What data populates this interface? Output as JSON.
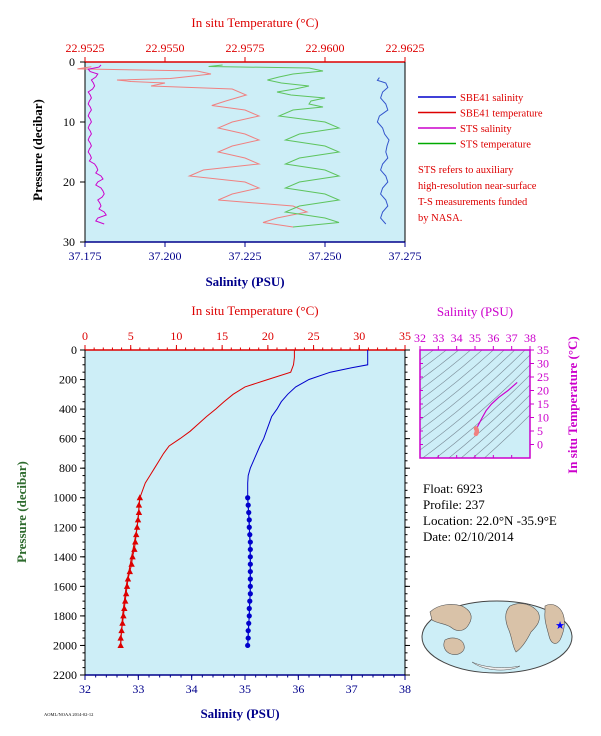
{
  "chart_data": [
    {
      "type": "line",
      "top_axis": {
        "label": "In situ Temperature (°C)",
        "range": [
          22.9525,
          22.9625
        ],
        "ticks": [
          "22.9525",
          "22.9550",
          "22.9575",
          "22.9600",
          "22.9625"
        ],
        "color": "#dd0000"
      },
      "bottom_axis": {
        "label": "Salinity (PSU)",
        "range": [
          37.175,
          37.275
        ],
        "ticks": [
          "37.175",
          "37.200",
          "37.225",
          "37.250",
          "37.275"
        ],
        "color": "#00008b"
      },
      "left_axis": {
        "label": "Pressure (decibar)",
        "range": [
          0,
          30
        ],
        "ticks": [
          "0",
          "10",
          "20",
          "30"
        ],
        "color": "#000000"
      },
      "legend": [
        {
          "name": "SBE41 salinity",
          "color": "#0000cc"
        },
        {
          "name": "SBE41 temperature",
          "color": "#dd0000"
        },
        {
          "name": "STS salinity",
          "color": "#cc00cc"
        },
        {
          "name": "STS temperature",
          "color": "#00aa00"
        }
      ],
      "note": [
        "STS refers to auxiliary",
        "high-resolution near-surface",
        "T-S measurements funded",
        "by NASA."
      ],
      "series": [
        {
          "name": "SBE41 salinity",
          "axis": "salinity",
          "color": "#3355cc",
          "p": [
            2.6,
            3.5,
            5.0,
            7.0,
            9.0,
            11.0,
            13.0,
            15.0,
            17.0,
            19.0,
            21.0,
            23.0,
            25.0,
            27.0
          ],
          "v": [
            37.267,
            37.269,
            37.268,
            37.269,
            37.267,
            37.268,
            37.27,
            37.269,
            37.268,
            37.269,
            37.268,
            37.269,
            37.268,
            37.269
          ]
        },
        {
          "name": "SBE41 temperature",
          "axis": "temperature",
          "color": "#f08080",
          "p": [
            0.8,
            1.5,
            2.5,
            3.0,
            3.5,
            4.5,
            6.5,
            8.0,
            10.0,
            12.0,
            14.0,
            16.0,
            18.0,
            20.0,
            22.0,
            24.0,
            26.0,
            27.5
          ],
          "v": [
            22.9527,
            22.956,
            22.9556,
            22.9535,
            22.955,
            22.9571,
            22.9569,
            22.9575,
            22.9571,
            22.9575,
            22.9571,
            22.9575,
            22.9562,
            22.9575,
            22.9571,
            22.959,
            22.9585,
            22.959
          ]
        },
        {
          "name": "STS salinity",
          "axis": "salinity",
          "color": "#cc00cc",
          "p": [
            0.5,
            1.2,
            2.0,
            3.0,
            4.0,
            5.0,
            6.0,
            7.0,
            8.0,
            9.0,
            10.0,
            11.0,
            12.0,
            13.0,
            14.0,
            15.0,
            16.0,
            17.0,
            18.0,
            19.0,
            20.0,
            21.0,
            22.0,
            23.0,
            24.0,
            25.0,
            26.0,
            27.0
          ],
          "v": [
            37.18,
            37.176,
            37.179,
            37.177,
            37.178,
            37.176,
            37.177,
            37.176,
            37.177,
            37.176,
            37.177,
            37.176,
            37.177,
            37.176,
            37.177,
            37.176,
            37.177,
            37.178,
            37.179,
            37.18,
            37.179,
            37.18,
            37.181,
            37.179,
            37.18,
            37.181,
            37.179,
            37.181
          ]
        },
        {
          "name": "STS temperature",
          "axis": "temperature",
          "color": "#5ec45e",
          "p": [
            0.5,
            1.0,
            2.0,
            3.0,
            4.0,
            5.0,
            6.0,
            7.0,
            8.0,
            10.0,
            12.0,
            14.0,
            16.0,
            18.0,
            20.0,
            22.0,
            24.0,
            26.0,
            27.5
          ],
          "v": [
            22.9568,
            22.9595,
            22.959,
            22.9582,
            22.9595,
            22.9585,
            22.96,
            22.9595,
            22.959,
            22.96,
            22.9592,
            22.96,
            22.9592,
            22.96,
            22.9592,
            22.96,
            22.9592,
            22.96,
            22.959
          ]
        }
      ]
    },
    {
      "type": "line",
      "top_axis": {
        "label": "In situ Temperature (°C)",
        "range": [
          0,
          35
        ],
        "ticks": [
          "0",
          "5",
          "10",
          "15",
          "20",
          "25",
          "30",
          "35"
        ],
        "color": "#dd0000"
      },
      "bottom_axis": {
        "label": "Salinity (PSU)",
        "range": [
          32,
          38
        ],
        "ticks": [
          "32",
          "33",
          "34",
          "35",
          "36",
          "37",
          "38"
        ],
        "color": "#00008b"
      },
      "left_axis": {
        "label": "Pressure (decibar)",
        "range": [
          0,
          2200
        ],
        "ticks": [
          "0",
          "200",
          "400",
          "600",
          "800",
          "1000",
          "1200",
          "1400",
          "1600",
          "1800",
          "2000",
          "2200"
        ],
        "color": "#2e6b2e"
      },
      "series": [
        {
          "name": "temperature",
          "color": "#dd0000",
          "p": [
            0,
            50,
            100,
            150,
            200,
            250,
            300,
            350,
            400,
            450,
            500,
            550,
            600,
            650,
            700,
            750,
            800,
            850,
            900,
            950,
            1000,
            1200,
            1400,
            1600,
            1800,
            2000
          ],
          "v": [
            22.9,
            22.9,
            22.8,
            22.5,
            20.0,
            17.5,
            16.2,
            15.2,
            14.3,
            13.3,
            12.4,
            11.5,
            10.4,
            9.2,
            8.6,
            8.1,
            7.6,
            7.1,
            6.6,
            6.3,
            6.0,
            5.7,
            5.1,
            4.5,
            4.1,
            3.9
          ]
        },
        {
          "name": "temperature bottle",
          "color": "#dd0000",
          "marker": "triangle",
          "p": [
            1000,
            1050,
            1100,
            1150,
            1200,
            1250,
            1300,
            1350,
            1400,
            1450,
            1500,
            1550,
            1600,
            1650,
            1700,
            1750,
            1800,
            1850,
            1900,
            1950,
            2000
          ],
          "v": [
            6.0,
            5.9,
            5.9,
            5.8,
            5.7,
            5.6,
            5.5,
            5.4,
            5.2,
            5.1,
            4.9,
            4.7,
            4.6,
            4.5,
            4.4,
            4.3,
            4.2,
            4.1,
            4.0,
            3.9,
            3.9
          ]
        },
        {
          "name": "salinity",
          "color": "#0000cc",
          "p": [
            0,
            50,
            100,
            120,
            150,
            200,
            250,
            300,
            350,
            400,
            450,
            500,
            550,
            600,
            650,
            700,
            750,
            800,
            850,
            900,
            950,
            1000,
            1200,
            1400,
            1600,
            1800,
            2000
          ],
          "v": [
            37.3,
            37.3,
            37.3,
            37.0,
            36.6,
            36.2,
            35.95,
            35.8,
            35.68,
            35.6,
            35.5,
            35.45,
            35.4,
            35.35,
            35.28,
            35.22,
            35.16,
            35.1,
            35.06,
            35.05,
            35.05,
            35.05,
            35.08,
            35.1,
            35.1,
            35.08,
            35.05
          ]
        },
        {
          "name": "salinity bottle",
          "color": "#0000cc",
          "marker": "circle",
          "p": [
            1000,
            1050,
            1100,
            1150,
            1200,
            1250,
            1300,
            1350,
            1400,
            1450,
            1500,
            1550,
            1600,
            1650,
            1700,
            1750,
            1800,
            1850,
            1900,
            1950,
            2000
          ],
          "v": [
            35.05,
            35.06,
            35.07,
            35.08,
            35.08,
            35.09,
            35.1,
            35.1,
            35.1,
            35.1,
            35.1,
            35.1,
            35.1,
            35.1,
            35.09,
            35.08,
            35.08,
            35.07,
            35.06,
            35.06,
            35.05
          ]
        }
      ]
    },
    {
      "type": "scatter",
      "top_axis": {
        "label": "Salinity (PSU)",
        "range": [
          32,
          38
        ],
        "ticks": [
          "32",
          "33",
          "34",
          "35",
          "36",
          "37",
          "38"
        ],
        "color": "#cc00cc"
      },
      "right_axis": {
        "label": "In situ Temperature (°C)",
        "range": [
          -5,
          35
        ],
        "ticks": [
          "0",
          "5",
          "10",
          "15",
          "20",
          "25",
          "30",
          "35"
        ],
        "color": "#cc00cc"
      },
      "ts_curve": {
        "s": [
          35.05,
          35.08,
          35.1,
          35.2,
          35.4,
          35.6,
          35.9,
          36.3,
          36.8,
          37.3
        ],
        "t": [
          3.9,
          5.0,
          6.0,
          7.5,
          10.0,
          12.5,
          15.0,
          17.5,
          20.0,
          23.0
        ]
      },
      "deep_points": {
        "s": [
          35.05,
          35.07,
          35.08,
          35.1,
          35.1,
          35.1,
          35.09,
          35.07,
          35.05
        ],
        "t": [
          6.0,
          5.8,
          5.6,
          5.2,
          4.9,
          4.6,
          4.4,
          4.1,
          3.9
        ]
      }
    }
  ],
  "float_info": {
    "float": "Float:  6923",
    "profile": "Profile:  237",
    "location": "Location:  22.0°N  -35.9°E",
    "date": "Date:  02/10/2014"
  },
  "footer_code": "AOML/NOAA 2014-02-12"
}
